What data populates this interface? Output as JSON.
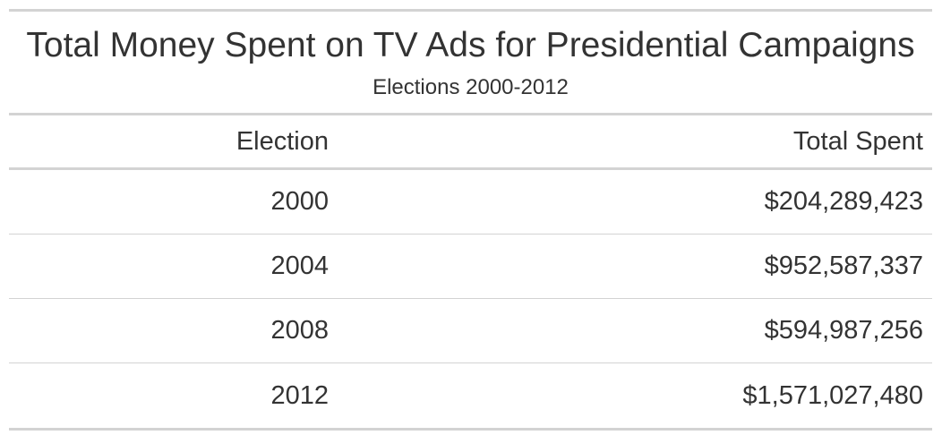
{
  "chart_data": {
    "type": "table",
    "title": "Total Money Spent on TV Ads for Presidential Campaigns",
    "subtitle": "Elections 2000-2012",
    "columns": [
      "Election",
      "Total Spent"
    ],
    "rows": [
      {
        "election": "2000",
        "total": "$204,289,423",
        "value": 204289423
      },
      {
        "election": "2004",
        "total": "$952,587,337",
        "value": 952587337
      },
      {
        "election": "2008",
        "total": "$594,987,256",
        "value": 594987256
      },
      {
        "election": "2012",
        "total": "$1,571,027,480",
        "value": 1571027480
      }
    ]
  }
}
